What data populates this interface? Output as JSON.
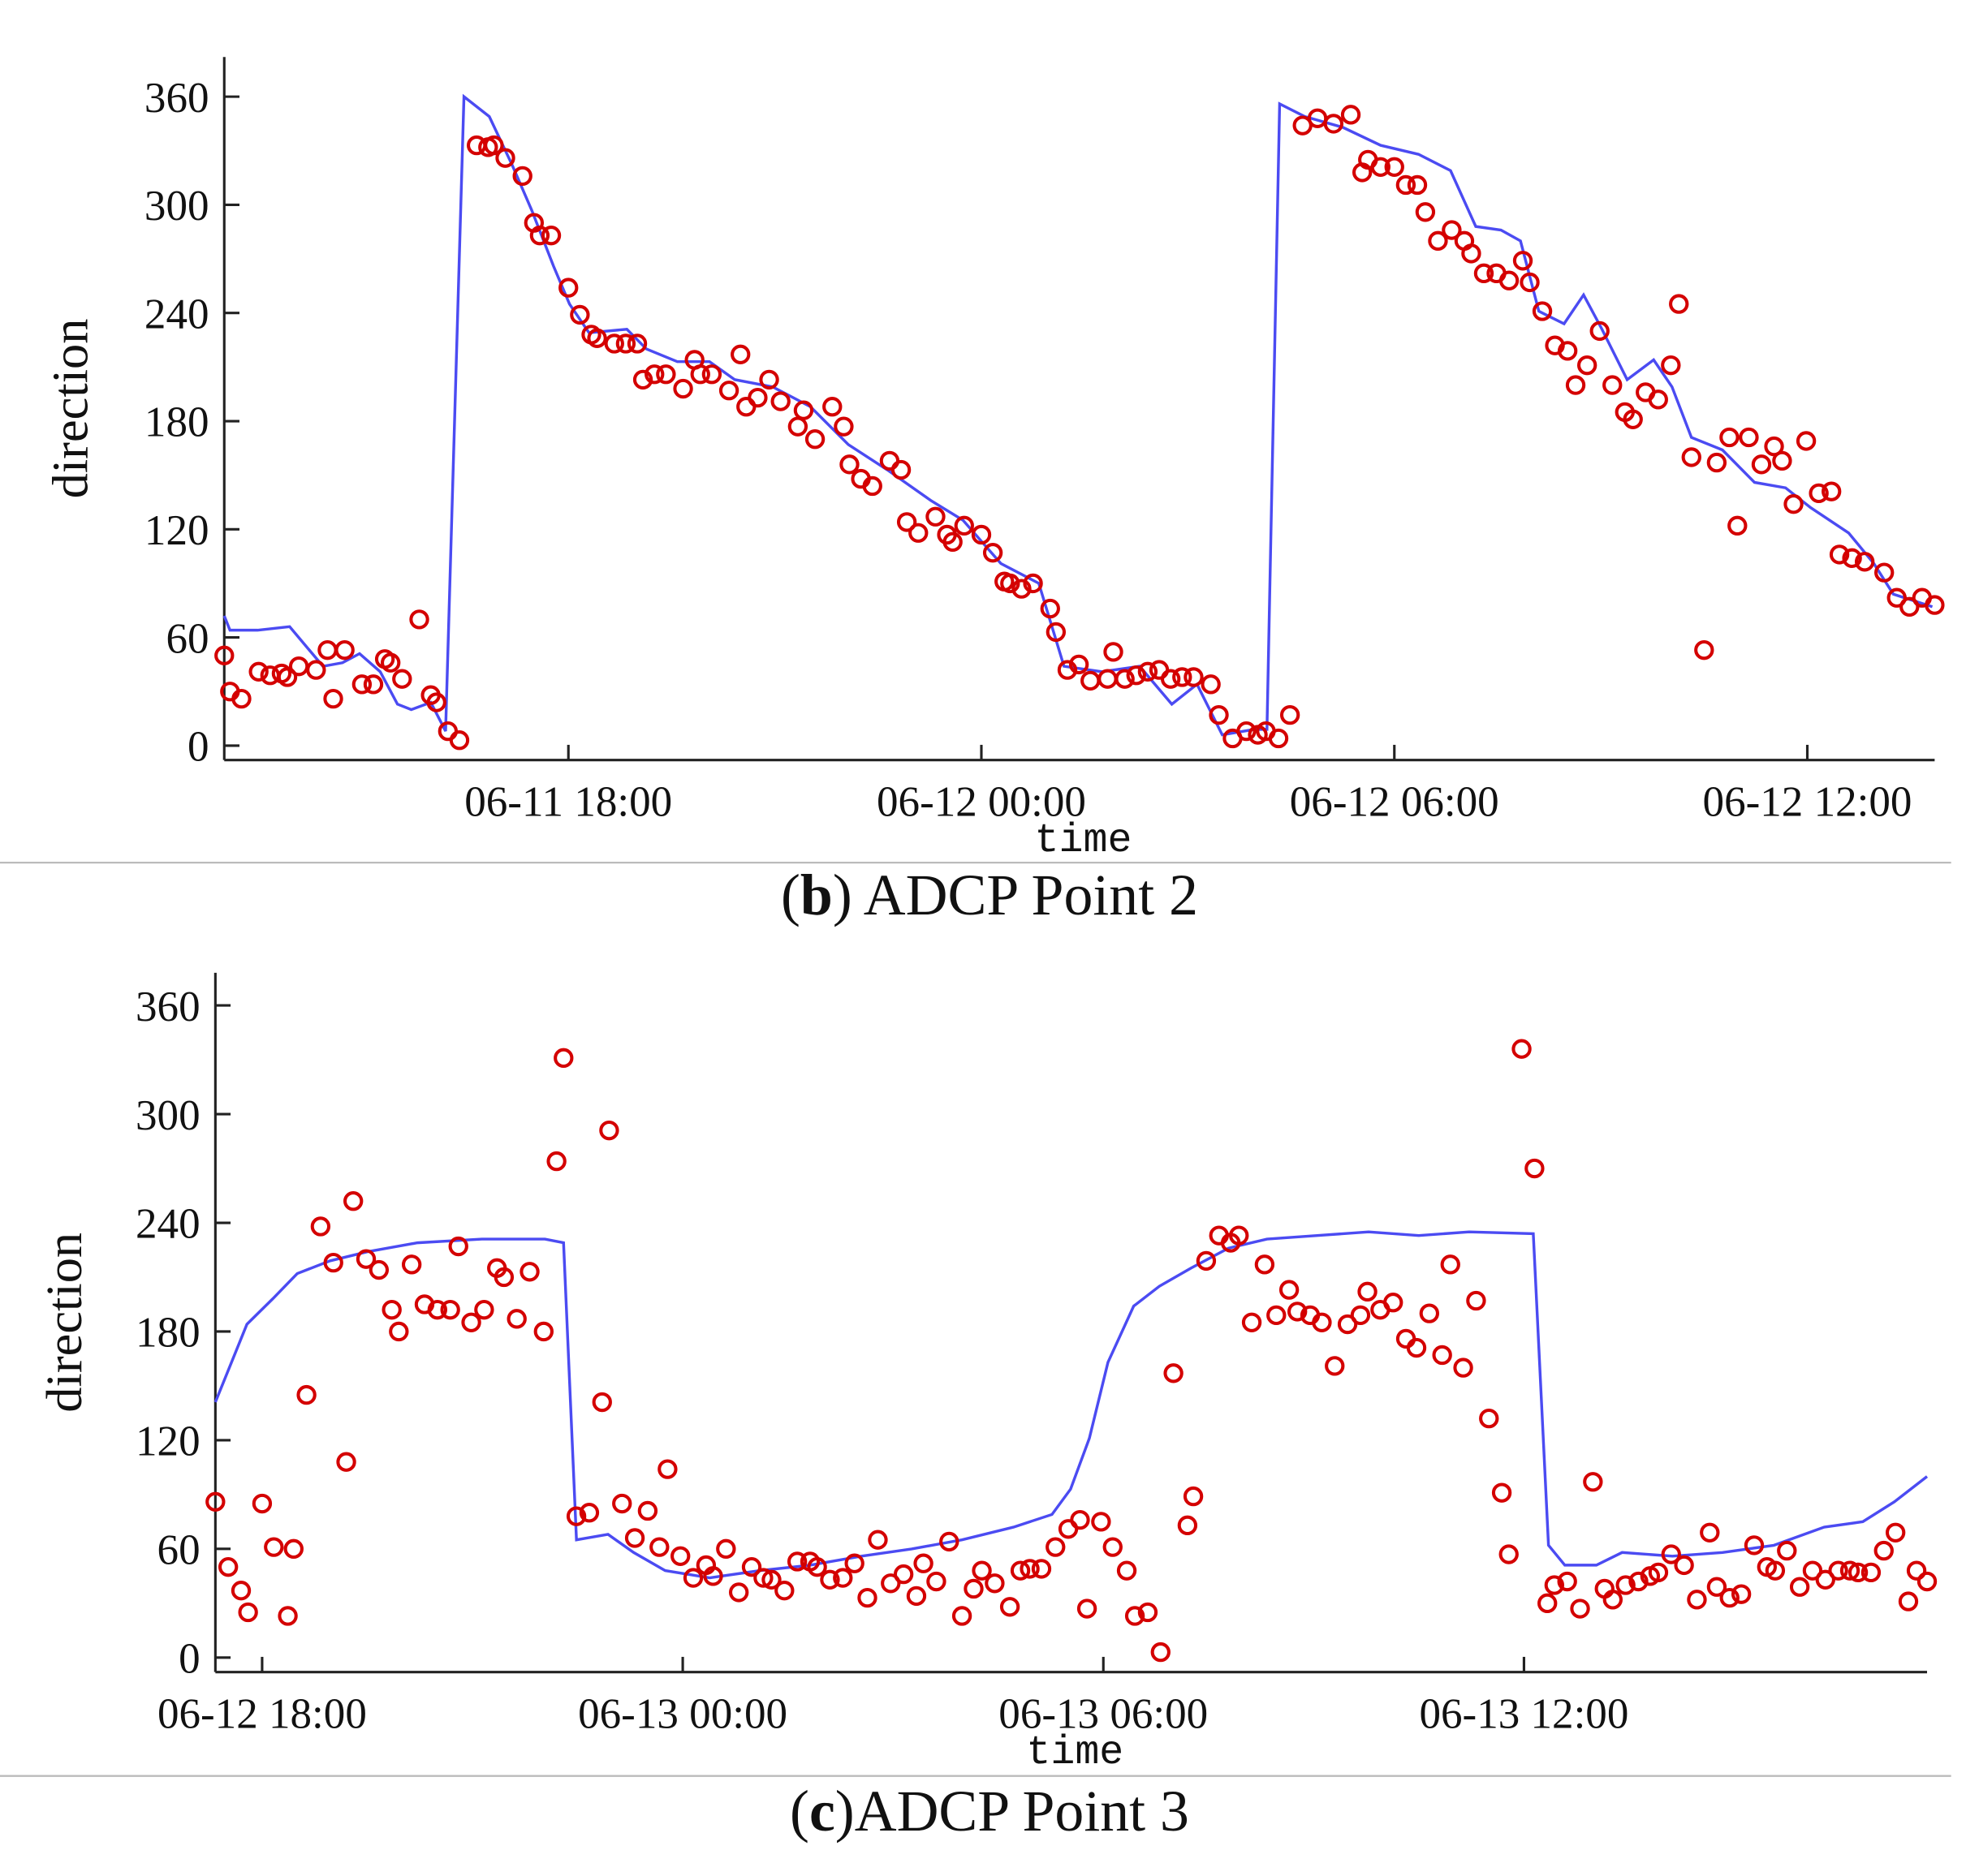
{
  "chart_data": [
    {
      "type": "scatter",
      "xlabel": "time",
      "ylabel": "direction",
      "caption": [
        "(",
        "b",
        ") ADCP Point 2"
      ],
      "xlim": [
        "06-11 13:00",
        "06-12 13:51"
      ],
      "ylim": [
        -8,
        382
      ],
      "xticks": [
        "06-11 18:00",
        "06-12 00:00",
        "06-12 06:00",
        "06-12 12:00"
      ],
      "yticks": [
        0,
        60,
        120,
        180,
        240,
        300,
        360
      ],
      "series": [
        {
          "type": "line",
          "color": "#4b4bf2",
          "x": [
            "06-11 13:00",
            "06-11 13:05",
            "06-11 13:29",
            "06-11 13:57",
            "06-11 14:26",
            "06-11 14:43",
            "06-11 14:58",
            "06-11 15:16",
            "06-11 15:31",
            "06-11 15:43",
            "06-11 16:00",
            "06-11 16:13",
            "06-11 16:29",
            "06-11 16:51",
            "06-11 17:11",
            "06-11 17:28",
            "06-11 17:47",
            "06-11 18:01",
            "06-11 18:18",
            "06-11 18:51",
            "06-11 19:08",
            "06-11 19:35",
            "06-11 20:03",
            "06-11 20:25",
            "06-11 20:58",
            "06-11 21:31",
            "06-11 22:04",
            "06-11 22:38",
            "06-11 23:16",
            "06-11 23:44",
            "06-12 00:17",
            "06-12 00:50",
            "06-12 01:12",
            "06-12 01:45",
            "06-12 02:18",
            "06-12 02:46",
            "06-12 03:08",
            "06-12 03:30",
            "06-12 03:58",
            "06-12 04:09",
            "06-12 04:20",
            "06-12 04:42",
            "06-12 05:15",
            "06-12 05:48",
            "06-12 06:21",
            "06-12 06:49",
            "06-12 07:11",
            "06-12 07:33",
            "06-12 07:50",
            "06-12 08:06",
            "06-12 08:28",
            "06-12 08:45",
            "06-12 09:01",
            "06-12 09:23",
            "06-12 09:46",
            "06-12 10:02",
            "06-12 10:19",
            "06-12 10:46",
            "06-12 11:14",
            "06-12 11:41",
            "06-12 12:03",
            "06-12 12:36",
            "06-12 12:58",
            "06-12 13:15",
            "06-12 13:49"
          ],
          "values": [
            72,
            64,
            64,
            66,
            44,
            46,
            51,
            41,
            23,
            20,
            24,
            8,
            360,
            349,
            322,
            297,
            266,
            245,
            229,
            231,
            220,
            213,
            213,
            203,
            199,
            188,
            167,
            153,
            136,
            125,
            101,
            90,
            44,
            41,
            44,
            23,
            34,
            6,
            9,
            9,
            356,
            349,
            343,
            333,
            328,
            319,
            288,
            286,
            280,
            241,
            234,
            250,
            231,
            203,
            214,
            199,
            171,
            164,
            146,
            143,
            132,
            118,
            101,
            84,
            77
          ]
        },
        {
          "type": "scatter",
          "color": "#d40000",
          "x": [
            "06-11 13:00",
            "06-11 13:05",
            "06-11 13:15",
            "06-11 13:30",
            "06-11 13:40",
            "06-11 13:50",
            "06-11 13:55",
            "06-11 14:05",
            "06-11 14:20",
            "06-11 14:30",
            "06-11 14:35",
            "06-11 14:45",
            "06-11 15:00",
            "06-11 15:10",
            "06-11 15:20",
            "06-11 15:25",
            "06-11 15:35",
            "06-11 15:50",
            "06-11 16:00",
            "06-11 16:05",
            "06-11 16:15",
            "06-11 16:25",
            "06-11 16:40",
            "06-11 16:50",
            "06-11 16:55",
            "06-11 17:05",
            "06-11 17:20",
            "06-11 17:30",
            "06-11 17:35",
            "06-11 17:45",
            "06-11 18:00",
            "06-11 18:10",
            "06-11 18:20",
            "06-11 18:25",
            "06-11 18:40",
            "06-11 18:50",
            "06-11 19:00",
            "06-11 19:05",
            "06-11 19:15",
            "06-11 19:25",
            "06-11 19:40",
            "06-11 19:50",
            "06-11 19:55",
            "06-11 20:05",
            "06-11 20:20",
            "06-11 20:30",
            "06-11 20:35",
            "06-11 20:45",
            "06-11 20:55",
            "06-11 21:05",
            "06-11 21:20",
            "06-11 21:25",
            "06-11 21:35",
            "06-11 21:50",
            "06-11 22:00",
            "06-11 22:05",
            "06-11 22:15",
            "06-11 22:25",
            "06-11 22:40",
            "06-11 22:50",
            "06-11 22:55",
            "06-11 23:05",
            "06-11 23:20",
            "06-11 23:30",
            "06-11 23:35",
            "06-11 23:45",
            "06-12 00:00",
            "06-12 00:10",
            "06-12 00:20",
            "06-12 00:25",
            "06-12 00:35",
            "06-12 00:45",
            "06-12 01:00",
            "06-12 01:05",
            "06-12 01:15",
            "06-12 01:25",
            "06-12 01:35",
            "06-12 01:50",
            "06-12 01:55",
            "06-12 02:05",
            "06-12 02:15",
            "06-12 02:25",
            "06-12 02:35",
            "06-12 02:45",
            "06-12 02:55",
            "06-12 03:05",
            "06-12 03:20",
            "06-12 03:27",
            "06-12 03:39",
            "06-12 03:51",
            "06-12 04:01",
            "06-12 04:08",
            "06-12 04:19",
            "06-12 04:29",
            "06-12 04:40",
            "06-12 04:53",
            "06-12 05:07",
            "06-12 05:22",
            "06-12 05:32",
            "06-12 05:37",
            "06-12 05:48",
            "06-12 06:00",
            "06-12 06:10",
            "06-12 06:20",
            "06-12 06:27",
            "06-12 06:38",
            "06-12 06:50",
            "06-12 07:01",
            "06-12 07:07",
            "06-12 07:18",
            "06-12 07:29",
            "06-12 07:40",
            "06-12 07:52",
            "06-12 07:58",
            "06-12 08:09",
            "06-12 08:20",
            "06-12 08:31",
            "06-12 08:38",
            "06-12 08:48",
            "06-12 08:59",
            "06-12 09:10",
            "06-12 09:21",
            "06-12 09:28",
            "06-12 09:39",
            "06-12 09:50",
            "06-12 10:01",
            "06-12 10:08",
            "06-12 10:19",
            "06-12 10:30",
            "06-12 10:41",
            "06-12 10:52",
            "06-12 10:59",
            "06-12 11:09",
            "06-12 11:20",
            "06-12 11:31",
            "06-12 11:38",
            "06-12 11:48",
            "06-12 11:59",
            "06-12 12:10",
            "06-12 12:21",
            "06-12 12:28",
            "06-12 12:39",
            "06-12 12:50",
            "06-12 13:07",
            "06-12 13:18",
            "06-12 13:29",
            "06-12 13:40",
            "06-12 13:51"
          ],
          "values": [
            50,
            30,
            26,
            41,
            39,
            40,
            38,
            44,
            42,
            53,
            26,
            53,
            34,
            34,
            48,
            46,
            37,
            70,
            28,
            24,
            8,
            3,
            333,
            332,
            333,
            326,
            316,
            290,
            283,
            283,
            254,
            239,
            228,
            226,
            223,
            223,
            223,
            203,
            206,
            206,
            198,
            214,
            206,
            206,
            197,
            217,
            188,
            193,
            203,
            191,
            177,
            186,
            170,
            188,
            177,
            156,
            148,
            144,
            158,
            153,
            124,
            118,
            127,
            117,
            113,
            122,
            117,
            107,
            91,
            90,
            87,
            90,
            76,
            63,
            42,
            45,
            36,
            37,
            52,
            37,
            39,
            41,
            42,
            37,
            38,
            38,
            34,
            17,
            4,
            8,
            6,
            8,
            4,
            17,
            344,
            348,
            345,
            350,
            318,
            325,
            321,
            321,
            311,
            311,
            296,
            280,
            286,
            280,
            273,
            262,
            262,
            258,
            269,
            257,
            241,
            222,
            219,
            200,
            211,
            230,
            200,
            185,
            181,
            196,
            192,
            211,
            245,
            160,
            53,
            157,
            171,
            122,
            171,
            156,
            166,
            158,
            134,
            169,
            140,
            141,
            106,
            104,
            102,
            96,
            82,
            77,
            82,
            78
          ]
        }
      ]
    },
    {
      "type": "scatter",
      "xlabel": "time",
      "ylabel": "direction",
      "caption": [
        "(",
        "c",
        ")ADCP Point 3"
      ],
      "xlim": [
        "06-12 17:20",
        "06-13 17:45"
      ],
      "ylim": [
        -8,
        378
      ],
      "xticks": [
        "06-12 18:00",
        "06-13 00:00",
        "06-13 06:00",
        "06-13 12:00"
      ],
      "yticks": [
        0,
        60,
        120,
        180,
        240,
        300,
        360
      ],
      "series": [
        {
          "type": "line",
          "color": "#4b4bf2",
          "x": [
            "06-12 17:20",
            "06-12 17:47",
            "06-12 18:09",
            "06-12 18:30",
            "06-12 18:58",
            "06-12 19:30",
            "06-12 20:13",
            "06-12 21:08",
            "06-12 22:02",
            "06-12 22:18",
            "06-12 22:29",
            "06-12 22:56",
            "06-12 23:18",
            "06-12 23:45",
            "06-13 00:23",
            "06-13 01:06",
            "06-13 01:49",
            "06-13 02:33",
            "06-13 03:16",
            "06-13 03:59",
            "06-13 04:43",
            "06-13 05:16",
            "06-13 05:32",
            "06-13 05:48",
            "06-13 06:04",
            "06-13 06:26",
            "06-13 06:48",
            "06-13 07:15",
            "06-13 07:47",
            "06-13 08:20",
            "06-13 09:03",
            "06-13 09:47",
            "06-13 10:30",
            "06-13 11:13",
            "06-13 12:08",
            "06-13 12:21",
            "06-13 12:35",
            "06-13 13:02",
            "06-13 13:24",
            "06-13 14:07",
            "06-13 14:50",
            "06-13 15:34",
            "06-13 16:17",
            "06-13 16:50",
            "06-13 17:17",
            "06-13 17:45"
          ],
          "values": [
            141,
            184,
            198,
            212,
            219,
            224,
            229,
            231,
            231,
            229,
            65,
            68,
            58,
            48,
            44,
            48,
            51,
            56,
            60,
            65,
            72,
            79,
            93,
            121,
            163,
            194,
            205,
            215,
            226,
            231,
            233,
            235,
            233,
            235,
            234,
            62,
            51,
            51,
            58,
            56,
            58,
            62,
            72,
            75,
            86,
            100
          ]
        },
        {
          "type": "scatter",
          "color": "#d40000",
          "x": [
            "06-12 17:20",
            "06-12 17:31",
            "06-12 17:42",
            "06-12 17:48",
            "06-12 18:00",
            "06-12 18:10",
            "06-12 18:22",
            "06-12 18:27",
            "06-12 18:38",
            "06-12 18:50",
            "06-12 19:01",
            "06-12 19:12",
            "06-12 19:18",
            "06-12 19:29",
            "06-12 19:40",
            "06-12 19:51",
            "06-12 19:57",
            "06-12 20:08",
            "06-12 20:19",
            "06-12 20:30",
            "06-12 20:41",
            "06-12 20:48",
            "06-12 20:59",
            "06-12 21:10",
            "06-12 21:21",
            "06-12 21:27",
            "06-12 21:38",
            "06-12 21:49",
            "06-12 22:01",
            "06-12 22:12",
            "06-12 22:18",
            "06-12 22:29",
            "06-12 22:40",
            "06-12 22:51",
            "06-12 22:57",
            "06-12 23:08",
            "06-12 23:19",
            "06-12 23:30",
            "06-12 23:40",
            "06-12 23:47",
            "06-12 23:58",
            "06-13 00:09",
            "06-13 00:20",
            "06-13 00:26",
            "06-13 00:37",
            "06-13 00:48",
            "06-13 00:59",
            "06-13 01:09",
            "06-13 01:16",
            "06-13 01:27",
            "06-13 01:38",
            "06-13 01:49",
            "06-13 01:55",
            "06-13 02:06",
            "06-13 02:17",
            "06-13 02:27",
            "06-13 02:38",
            "06-13 02:47",
            "06-13 02:58",
            "06-13 03:09",
            "06-13 03:20",
            "06-13 03:26",
            "06-13 03:37",
            "06-13 03:48",
            "06-13 03:59",
            "06-13 04:09",
            "06-13 04:16",
            "06-13 04:27",
            "06-13 04:40",
            "06-13 04:49",
            "06-13 04:57",
            "06-13 05:07",
            "06-13 05:19",
            "06-13 05:30",
            "06-13 05:40",
            "06-13 05:46",
            "06-13 05:58",
            "06-13 06:08",
            "06-13 06:20",
            "06-13 06:27",
            "06-13 06:38",
            "06-13 06:49",
            "06-13 07:00",
            "06-13 07:12",
            "06-13 07:17",
            "06-13 07:28",
            "06-13 07:39",
            "06-13 07:49",
            "06-13 07:56",
            "06-13 08:07",
            "06-13 08:18",
            "06-13 08:28",
            "06-13 08:39",
            "06-13 08:46",
            "06-13 08:57",
            "06-13 09:07",
            "06-13 09:18",
            "06-13 09:29",
            "06-13 09:40",
            "06-13 09:46",
            "06-13 09:57",
            "06-13 10:08",
            "06-13 10:19",
            "06-13 10:28",
            "06-13 10:39",
            "06-13 10:50",
            "06-13 10:57",
            "06-13 11:08",
            "06-13 11:19",
            "06-13 11:30",
            "06-13 11:41",
            "06-13 11:47",
            "06-13 11:58",
            "06-13 12:09",
            "06-13 12:20",
            "06-13 12:26",
            "06-13 12:37",
            "06-13 12:48",
            "06-13 12:59",
            "06-13 13:09",
            "06-13 13:16",
            "06-13 13:27",
            "06-13 13:38",
            "06-13 13:48",
            "06-13 13:55",
            "06-13 14:06",
            "06-13 14:17",
            "06-13 14:28",
            "06-13 14:39",
            "06-13 14:45",
            "06-13 14:56",
            "06-13 15:06",
            "06-13 15:17",
            "06-13 15:28",
            "06-13 15:35",
            "06-13 15:45",
            "06-13 15:56",
            "06-13 16:07",
            "06-13 16:18",
            "06-13 16:29",
            "06-13 16:39",
            "06-13 16:46",
            "06-13 16:57",
            "06-13 17:08",
            "06-13 17:18",
            "06-13 17:29",
            "06-13 17:36",
            "06-13 17:45"
          ],
          "values": [
            86,
            50,
            37,
            25,
            85,
            61,
            23,
            60,
            145,
            238,
            218,
            108,
            252,
            220,
            214,
            192,
            180,
            217,
            195,
            192,
            192,
            227,
            185,
            192,
            215,
            210,
            187,
            213,
            180,
            274,
            331,
            78,
            80,
            141,
            291,
            85,
            66,
            81,
            61,
            104,
            56,
            44,
            51,
            45,
            60,
            36,
            50,
            44,
            43,
            37,
            53,
            53,
            50,
            43,
            44,
            52,
            33,
            65,
            41,
            46,
            34,
            52,
            42,
            64,
            23,
            38,
            48,
            41,
            28,
            48,
            49,
            49,
            61,
            71,
            76,
            27,
            75,
            61,
            48,
            23,
            25,
            3,
            157,
            73,
            89,
            219,
            233,
            229,
            233,
            185,
            217,
            189,
            203,
            191,
            189,
            185,
            161,
            184,
            189,
            202,
            192,
            196,
            176,
            171,
            190,
            167,
            217,
            160,
            197,
            132,
            91,
            57,
            336,
            270,
            30,
            40,
            42,
            27,
            97,
            38,
            32,
            40,
            42,
            45,
            47,
            57,
            51,
            32,
            69,
            39,
            33,
            35,
            62,
            50,
            48,
            59,
            39,
            48,
            43,
            48,
            48,
            47,
            47,
            59,
            69,
            31,
            48,
            42
          ]
        }
      ]
    }
  ]
}
